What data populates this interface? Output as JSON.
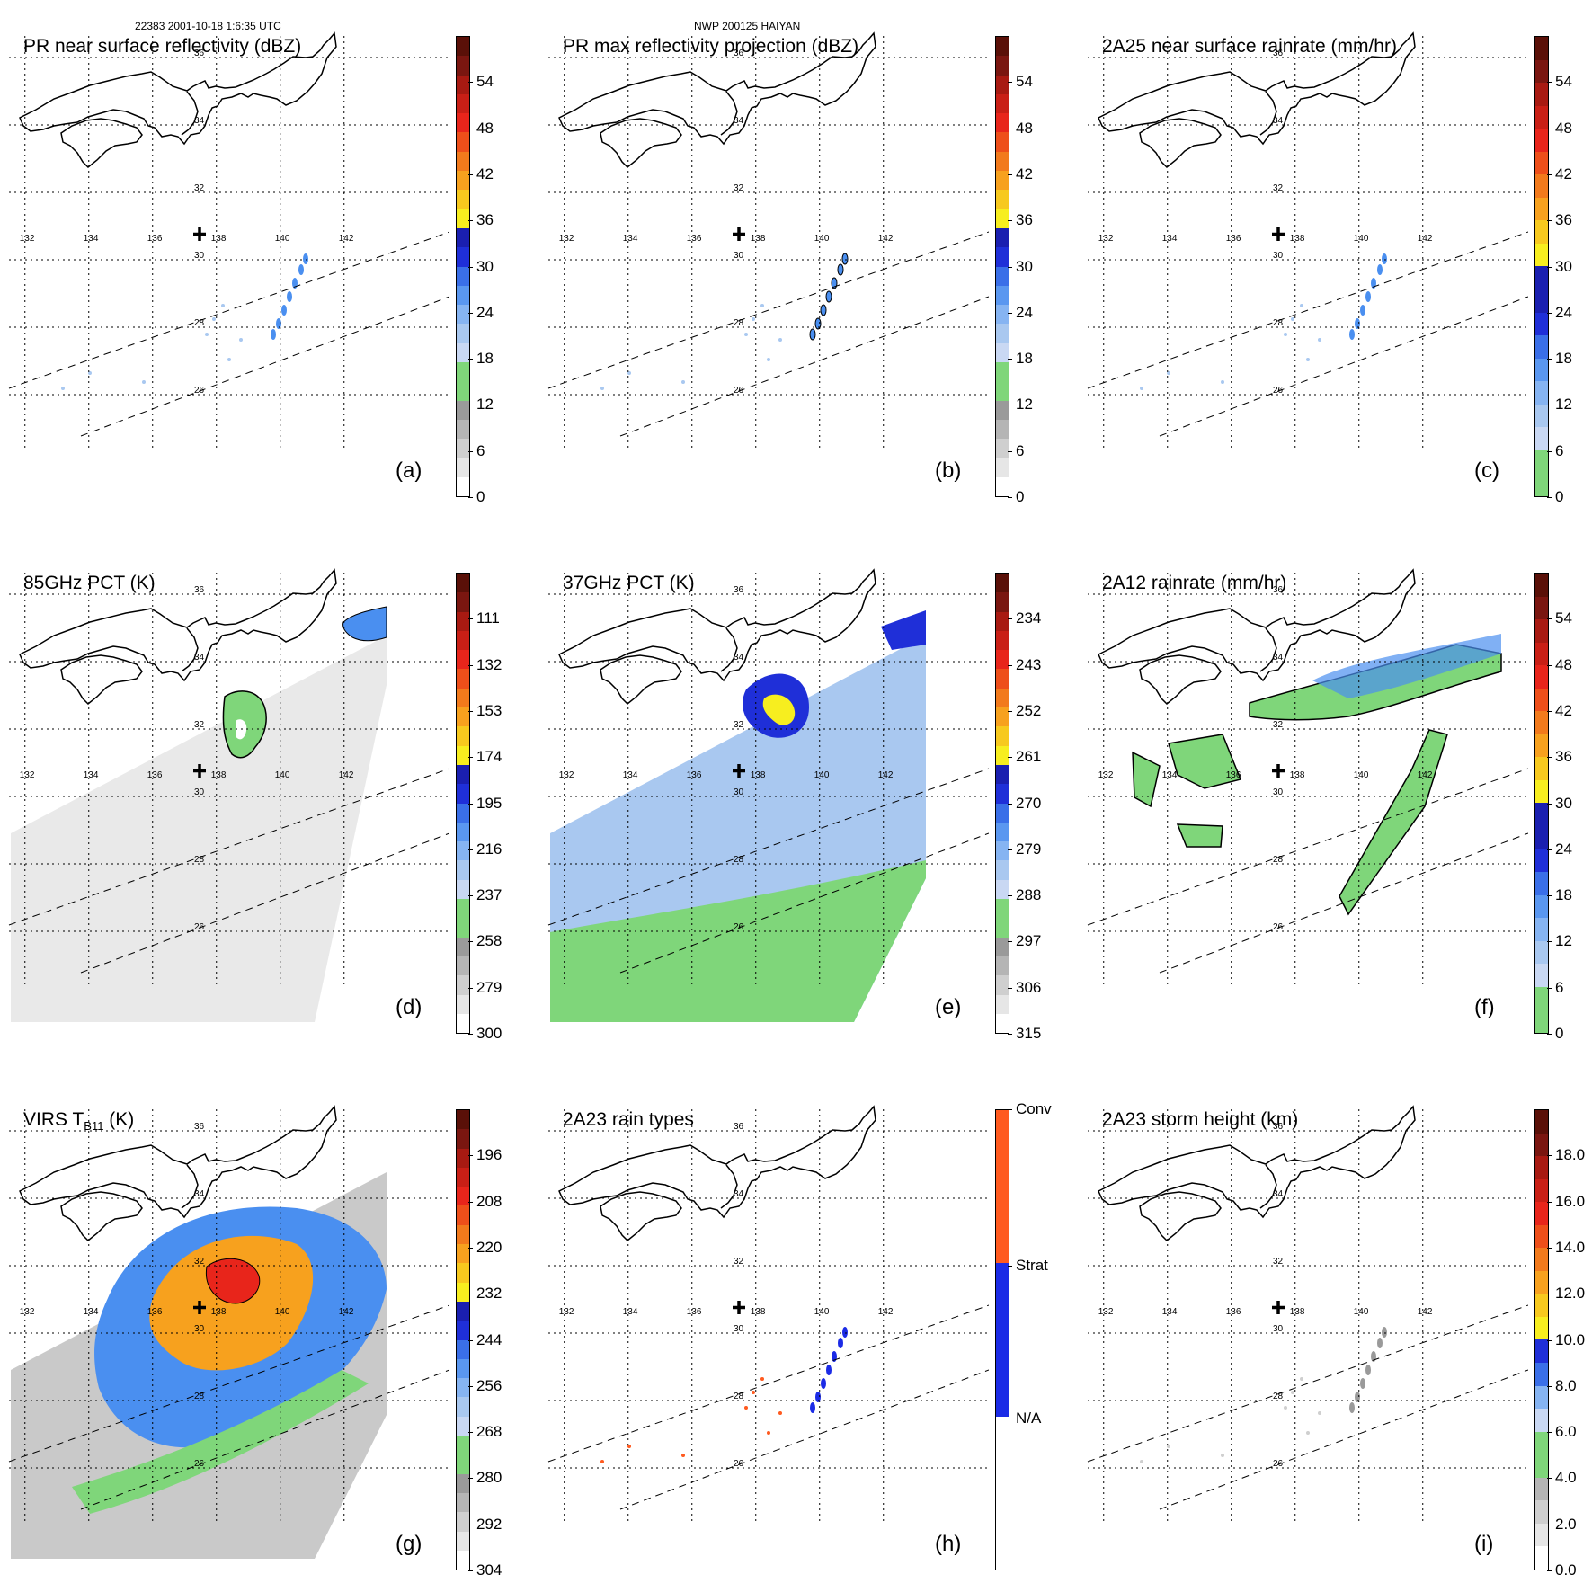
{
  "header": {
    "orbit_info": "22383 2001-10-18 1:6:35 UTC",
    "storm_info": "NWP 200125 HAIYAN"
  },
  "axes": {
    "lon_labels": [
      "132",
      "134",
      "136",
      "138",
      "140",
      "142"
    ],
    "lat_labels": [
      "36",
      "34",
      "32",
      "30",
      "28",
      "26"
    ]
  },
  "colors": {
    "coast": "#000000",
    "grid": "#000000",
    "rain_green": "#7fd67a",
    "light_blue": "#a9c8f0",
    "mid_blue": "#4a8ff0",
    "dark_blue": "#1f2fd8",
    "yellow": "#f7ee1f",
    "orange": "#f7a11e",
    "red": "#e8251b",
    "dark_red": "#7a1610",
    "gray_light": "#e9e9e9",
    "gray_mid": "#bdbdbd",
    "conv": "#ff5a1f",
    "strat": "#1b2be6"
  },
  "panels": [
    {
      "id": "a",
      "title": "PR near surface reflectivity (dBZ)",
      "label": "(a)",
      "colorbar": [
        "0",
        "6",
        "12",
        "18",
        "24",
        "30",
        "36",
        "42",
        "48",
        "54"
      ],
      "colors": [
        "#ffffff",
        "#e6e6e6",
        "#cfcfcf",
        "#b5b5b5",
        "#9a9a9a",
        "#7fd67a",
        "#7fd67a",
        "#c9d8f3",
        "#a9c8f0",
        "#86b4f2",
        "#5a97f0",
        "#3a6fe8",
        "#1f2fd8",
        "#1a1fb0",
        "#f7ee1f",
        "#f7c91e",
        "#f7a11e",
        "#f27a1c",
        "#ee4f1a",
        "#e8251b",
        "#c91f16",
        "#a81a12",
        "#7a1610",
        "#5a1008"
      ]
    },
    {
      "id": "b",
      "title": "PR max reflectivity projection (dBZ)",
      "label": "(b)",
      "colorbar": [
        "0",
        "6",
        "12",
        "18",
        "24",
        "30",
        "36",
        "42",
        "48",
        "54"
      ],
      "colors": [
        "#ffffff",
        "#e6e6e6",
        "#cfcfcf",
        "#b5b5b5",
        "#9a9a9a",
        "#7fd67a",
        "#7fd67a",
        "#c9d8f3",
        "#a9c8f0",
        "#86b4f2",
        "#5a97f0",
        "#3a6fe8",
        "#1f2fd8",
        "#1a1fb0",
        "#f7ee1f",
        "#f7c91e",
        "#f7a11e",
        "#f27a1c",
        "#ee4f1a",
        "#e8251b",
        "#c91f16",
        "#a81a12",
        "#7a1610",
        "#5a1008"
      ]
    },
    {
      "id": "c",
      "title": "2A25 near surface rainrate (mm/hr)",
      "label": "(c)",
      "colorbar": [
        "0",
        "6",
        "12",
        "18",
        "24",
        "30",
        "36",
        "42",
        "48",
        "54"
      ],
      "colors": [
        "#7fd67a",
        "#7fd67a",
        "#c9d8f3",
        "#a9c8f0",
        "#86b4f2",
        "#5a97f0",
        "#3a6fe8",
        "#1f2fd8",
        "#1a1fb0",
        "#1a1fb0",
        "#f7ee1f",
        "#f7c91e",
        "#f7a11e",
        "#f27a1c",
        "#ee4f1a",
        "#e8251b",
        "#c91f16",
        "#a81a12",
        "#7a1610",
        "#5a1008"
      ]
    },
    {
      "id": "d",
      "title": "85GHz PCT (K)",
      "label": "(d)",
      "colorbar": [
        "300",
        "279",
        "258",
        "237",
        "216",
        "195",
        "174",
        "153",
        "132",
        "111"
      ],
      "colors": [
        "#ffffff",
        "#e6e6e6",
        "#cfcfcf",
        "#b5b5b5",
        "#9a9a9a",
        "#7fd67a",
        "#7fd67a",
        "#c9d8f3",
        "#a9c8f0",
        "#86b4f2",
        "#5a97f0",
        "#3a6fe8",
        "#1f2fd8",
        "#1a1fb0",
        "#f7ee1f",
        "#f7c91e",
        "#f7a11e",
        "#f27a1c",
        "#ee4f1a",
        "#e8251b",
        "#c91f16",
        "#a81a12",
        "#7a1610",
        "#5a1008"
      ]
    },
    {
      "id": "e",
      "title": "37GHz PCT (K)",
      "label": "(e)",
      "colorbar": [
        "315",
        "306",
        "297",
        "288",
        "279",
        "270",
        "261",
        "252",
        "243",
        "234"
      ],
      "colors": [
        "#ffffff",
        "#e6e6e6",
        "#cfcfcf",
        "#b5b5b5",
        "#9a9a9a",
        "#7fd67a",
        "#7fd67a",
        "#c9d8f3",
        "#a9c8f0",
        "#86b4f2",
        "#5a97f0",
        "#3a6fe8",
        "#1f2fd8",
        "#1a1fb0",
        "#f7ee1f",
        "#f7c91e",
        "#f7a11e",
        "#f27a1c",
        "#ee4f1a",
        "#e8251b",
        "#c91f16",
        "#a81a12",
        "#7a1610",
        "#5a1008"
      ]
    },
    {
      "id": "f",
      "title": "2A12 rainrate (mm/hr)",
      "label": "(f)",
      "colorbar": [
        "0",
        "6",
        "12",
        "18",
        "24",
        "30",
        "36",
        "42",
        "48",
        "54"
      ],
      "colors": [
        "#7fd67a",
        "#7fd67a",
        "#c9d8f3",
        "#a9c8f0",
        "#86b4f2",
        "#5a97f0",
        "#3a6fe8",
        "#1f2fd8",
        "#1a1fb0",
        "#1a1fb0",
        "#f7ee1f",
        "#f7c91e",
        "#f7a11e",
        "#f27a1c",
        "#ee4f1a",
        "#e8251b",
        "#c91f16",
        "#a81a12",
        "#7a1610",
        "#5a1008"
      ]
    },
    {
      "id": "g",
      "title": "VIRS T",
      "title_sub": "B11",
      "title_suffix": " (K)",
      "label": "(g)",
      "colorbar": [
        "304",
        "292",
        "280",
        "268",
        "256",
        "244",
        "232",
        "220",
        "208",
        "196"
      ],
      "colors": [
        "#ffffff",
        "#e6e6e6",
        "#cfcfcf",
        "#b5b5b5",
        "#9a9a9a",
        "#7fd67a",
        "#7fd67a",
        "#c9d8f3",
        "#a9c8f0",
        "#86b4f2",
        "#5a97f0",
        "#3a6fe8",
        "#1f2fd8",
        "#1a1fb0",
        "#f7ee1f",
        "#f7c91e",
        "#f7a11e",
        "#f27a1c",
        "#ee4f1a",
        "#e8251b",
        "#c91f16",
        "#a81a12",
        "#7a1610",
        "#5a1008"
      ]
    },
    {
      "id": "h",
      "title": "2A23 rain types",
      "label": "(h)",
      "colorbar": [
        "N/A",
        "Strat",
        "Conv"
      ],
      "colors": [
        "#ffffff",
        "#1b2be6",
        "#ff5a1f"
      ]
    },
    {
      "id": "i",
      "title": "2A23 storm height (km)",
      "label": "(i)",
      "colorbar": [
        "0.0",
        "2.0",
        "4.0",
        "6.0",
        "8.0",
        "10.0",
        "12.0",
        "14.0",
        "16.0",
        "18.0"
      ],
      "colors": [
        "#ffffff",
        "#e6e6e6",
        "#cfcfcf",
        "#b5b5b5",
        "#7fd67a",
        "#7fd67a",
        "#c9d8f3",
        "#86b4f2",
        "#3a6fe8",
        "#1f2fd8",
        "#f7ee1f",
        "#f7c91e",
        "#f7a11e",
        "#f27a1c",
        "#ee4f1a",
        "#e8251b",
        "#c91f16",
        "#a81a12",
        "#7a1610",
        "#5a1008"
      ]
    }
  ]
}
